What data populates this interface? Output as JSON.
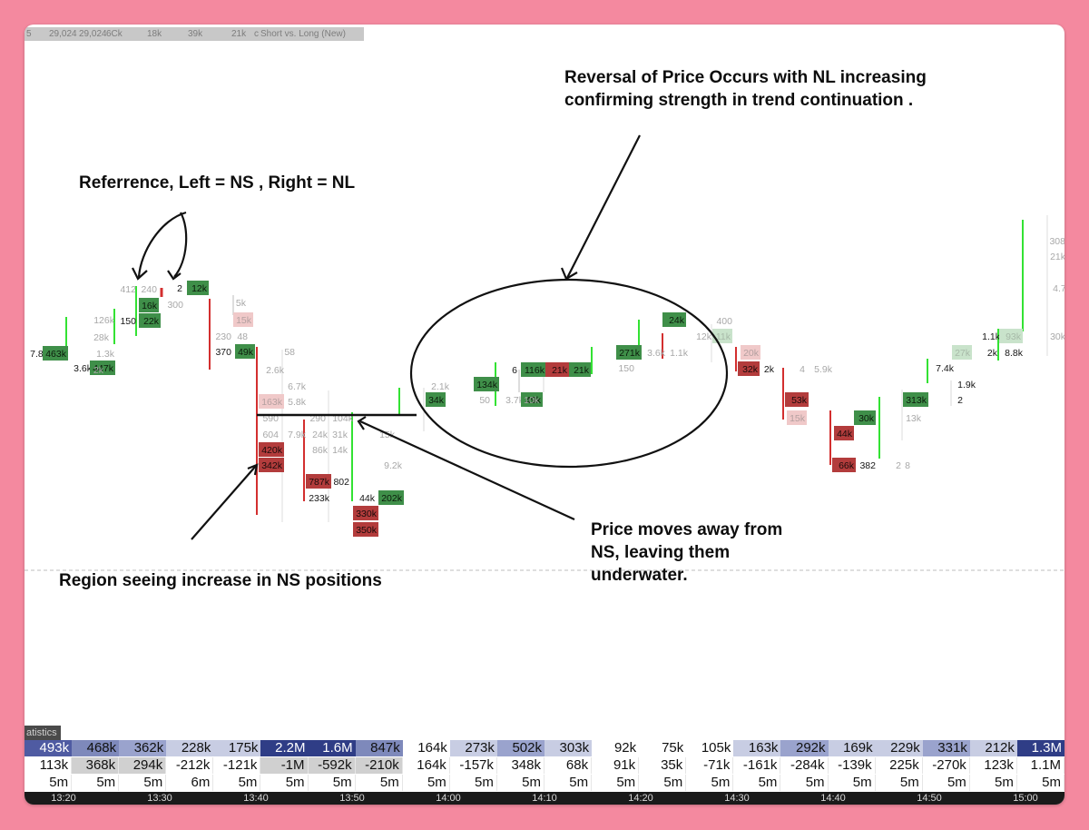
{
  "header_items": [
    {
      "t": "5"
    },
    {
      "t": "29,024"
    },
    {
      "t": "29,024"
    },
    {
      "t": "6Ck"
    },
    {
      "t": "18k"
    },
    {
      "t": "39k"
    },
    {
      "t": "21k"
    },
    {
      "t": "c"
    },
    {
      "t": "Short vs. Long (New)"
    }
  ],
  "annotations": {
    "reference": "Referrence, Left = NS , Right = NL",
    "reversal_line1": "Reversal of Price Occurs with NL increasing",
    "reversal_line2": "confirming strength in trend continuation .",
    "price_moves_line1": "Price moves away from",
    "price_moves_line2": "NS, leaving them",
    "price_moves_line3": "underwater.",
    "region": "Region seeing increase in NS positions"
  },
  "stats_label": "atistics",
  "colors": {
    "green": "#3a8c45",
    "red": "#b33434",
    "bright_green": "#33e233",
    "stats_dark": "#2f3d86",
    "stats_mid": "#7e89bb",
    "stats_light": "#c8cde3"
  },
  "chart_data": {
    "type": "table",
    "chart_cells": [
      {
        "text": "7.8k",
        "tone": "plain"
      },
      {
        "text": "463k",
        "tone": "green"
      },
      {
        "text": "3.6k",
        "tone": "plain"
      },
      {
        "text": "447k",
        "tone": "green"
      },
      {
        "text": "126k",
        "tone": "grey"
      },
      {
        "text": "28k",
        "tone": "grey"
      },
      {
        "text": "1.3k",
        "tone": "grey"
      },
      {
        "text": "2k",
        "tone": "grey"
      },
      {
        "text": "412",
        "tone": "grey"
      },
      {
        "text": "240",
        "tone": "grey"
      },
      {
        "text": "16k",
        "tone": "green"
      },
      {
        "text": "150",
        "tone": "plain"
      },
      {
        "text": "22k",
        "tone": "green"
      },
      {
        "text": "2",
        "tone": "plain"
      },
      {
        "text": "12k",
        "tone": "green"
      },
      {
        "text": "300",
        "tone": "grey"
      },
      {
        "text": "5k",
        "tone": "grey"
      },
      {
        "text": "15k",
        "tone": "pink"
      },
      {
        "text": "230",
        "tone": "grey"
      },
      {
        "text": "48",
        "tone": "grey"
      },
      {
        "text": "370",
        "tone": "plain"
      },
      {
        "text": "49k",
        "tone": "green"
      },
      {
        "text": "58",
        "tone": "grey"
      },
      {
        "text": "2.6k",
        "tone": "grey"
      },
      {
        "text": "6.7k",
        "tone": "grey"
      },
      {
        "text": "163k",
        "tone": "pink"
      },
      {
        "text": "5.8k",
        "tone": "grey"
      },
      {
        "text": "590",
        "tone": "grey"
      },
      {
        "text": "604",
        "tone": "grey"
      },
      {
        "text": "7.9k",
        "tone": "grey"
      },
      {
        "text": "420k",
        "tone": "red"
      },
      {
        "text": "342k",
        "tone": "red"
      },
      {
        "text": "290",
        "tone": "grey"
      },
      {
        "text": "104k",
        "tone": "grey"
      },
      {
        "text": "24k",
        "tone": "grey"
      },
      {
        "text": "31k",
        "tone": "grey"
      },
      {
        "text": "86k",
        "tone": "grey"
      },
      {
        "text": "14k",
        "tone": "grey"
      },
      {
        "text": "787k",
        "tone": "red"
      },
      {
        "text": "802",
        "tone": "plain"
      },
      {
        "text": "233k",
        "tone": "plain"
      },
      {
        "text": "15k",
        "tone": "grey"
      },
      {
        "text": "9.2k",
        "tone": "grey"
      },
      {
        "text": "44k",
        "tone": "plain"
      },
      {
        "text": "202k",
        "tone": "green"
      },
      {
        "text": "330k",
        "tone": "red"
      },
      {
        "text": "350k",
        "tone": "red"
      },
      {
        "text": "2.1k",
        "tone": "grey"
      },
      {
        "text": "34k",
        "tone": "green"
      },
      {
        "text": "134k",
        "tone": "green"
      },
      {
        "text": "50",
        "tone": "grey"
      },
      {
        "text": "6",
        "tone": "plain"
      },
      {
        "text": "116k",
        "tone": "green"
      },
      {
        "text": "3.7k",
        "tone": "grey"
      },
      {
        "text": "49k",
        "tone": "green"
      },
      {
        "text": "10k",
        "tone": "grey"
      },
      {
        "text": "21k",
        "tone": "red"
      },
      {
        "text": "21k",
        "tone": "green"
      },
      {
        "text": "2",
        "tone": "plain"
      },
      {
        "text": "271k",
        "tone": "green"
      },
      {
        "text": "150",
        "tone": "grey"
      },
      {
        "text": "3.6k",
        "tone": "grey"
      },
      {
        "text": "1.1k",
        "tone": "grey"
      },
      {
        "text": "24k",
        "tone": "green"
      },
      {
        "text": "400",
        "tone": "grey"
      },
      {
        "text": "12k",
        "tone": "grey"
      },
      {
        "text": "11k",
        "tone": "lightgreen"
      },
      {
        "text": "20k",
        "tone": "pink"
      },
      {
        "text": "32k",
        "tone": "red"
      },
      {
        "text": "2k",
        "tone": "plain"
      },
      {
        "text": "4",
        "tone": "grey"
      },
      {
        "text": "5.9k",
        "tone": "grey"
      },
      {
        "text": "53k",
        "tone": "red"
      },
      {
        "text": "15k",
        "tone": "pink"
      },
      {
        "text": "44k",
        "tone": "red"
      },
      {
        "text": "30k",
        "tone": "green"
      },
      {
        "text": "66k",
        "tone": "red"
      },
      {
        "text": "382",
        "tone": "plain"
      },
      {
        "text": "2",
        "tone": "grey"
      },
      {
        "text": "8",
        "tone": "grey"
      },
      {
        "text": "313k",
        "tone": "green"
      },
      {
        "text": "13k",
        "tone": "grey"
      },
      {
        "text": "7.4k",
        "tone": "plain"
      },
      {
        "text": "1.9k",
        "tone": "plain"
      },
      {
        "text": "2",
        "tone": "plain"
      },
      {
        "text": "27k",
        "tone": "lightgreen"
      },
      {
        "text": "1.1k",
        "tone": "plain"
      },
      {
        "text": "93k",
        "tone": "lightgreen"
      },
      {
        "text": "2k",
        "tone": "plain"
      },
      {
        "text": "8.8k",
        "tone": "plain"
      },
      {
        "text": "308",
        "tone": "grey"
      },
      {
        "text": "21k",
        "tone": "grey"
      },
      {
        "text": "4.7k",
        "tone": "grey"
      },
      {
        "text": "30k",
        "tone": "grey"
      }
    ],
    "statistics": {
      "row1": [
        "493k",
        "468k",
        "362k",
        "228k",
        "175k",
        "2.2M",
        "1.6M",
        "847k",
        "164k",
        "273k",
        "502k",
        "303k",
        "92k",
        "75k",
        "105k",
        "163k",
        "292k",
        "169k",
        "229k",
        "331k",
        "212k",
        "1.3M"
      ],
      "row1_shade": [
        4,
        3,
        2,
        1,
        1,
        5,
        5,
        3,
        0,
        1,
        2,
        1,
        0,
        0,
        0,
        1,
        2,
        1,
        1,
        2,
        1,
        5
      ],
      "row2": [
        "113k",
        "368k",
        "294k",
        "-212k",
        "-121k",
        "-1M",
        "-592k",
        "-210k",
        "164k",
        "-157k",
        "348k",
        "68k",
        "91k",
        "35k",
        "-71k",
        "-161k",
        "-284k",
        "-139k",
        "225k",
        "-270k",
        "123k",
        "1.1M"
      ],
      "row2_shade": [
        0,
        1,
        1,
        0,
        0,
        1,
        1,
        1,
        0,
        0,
        0,
        0,
        0,
        0,
        0,
        0,
        0,
        0,
        0,
        0,
        0,
        0
      ],
      "row3": [
        "5m",
        "5m",
        "5m",
        "6m",
        "5m",
        "5m",
        "5m",
        "5m",
        "5m",
        "5m",
        "5m",
        "5m",
        "5m",
        "5m",
        "5m",
        "5m",
        "5m",
        "5m",
        "5m",
        "5m",
        "5m",
        "5m"
      ]
    },
    "time_ticks": [
      "13:20",
      "13:30",
      "13:40",
      "13:50",
      "14:00",
      "14:10",
      "14:20",
      "14:30",
      "14:40",
      "14:50",
      "15:00"
    ]
  }
}
